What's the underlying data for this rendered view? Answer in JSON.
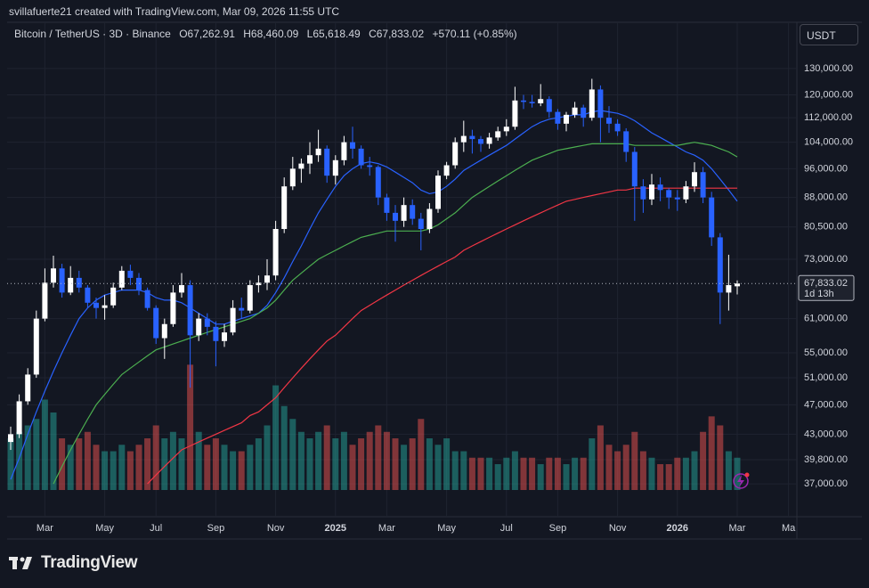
{
  "credit": "svillafuerte21 created with TradingView.com, Mar 09, 2026 11:55 UTC",
  "brand": "TradingView",
  "chart_data": {
    "type": "candlestick",
    "title": "Bitcoin / TetherUS · 3D · Binance",
    "header": {
      "open": "O67,262.91",
      "high": "H68,460.09",
      "low": "L65,618.49",
      "close": "C67,833.02",
      "change": "+570.11 (+0.85%)"
    },
    "currency": "USDT",
    "categories": [
      null,
      null,
      null,
      null,
      "Mar",
      null,
      null,
      null,
      null,
      null,
      null,
      "May",
      null,
      null,
      null,
      null,
      null,
      "Jul",
      null,
      null,
      null,
      null,
      null,
      null,
      "Sep",
      null,
      null,
      null,
      null,
      null,
      null,
      "Nov",
      null,
      null,
      null,
      null,
      null,
      null,
      "2025",
      null,
      null,
      null,
      null,
      null,
      "Mar",
      null,
      null,
      null,
      null,
      null,
      null,
      "May",
      null,
      null,
      null,
      null,
      null,
      null,
      "Jul",
      null,
      null,
      null,
      null,
      null,
      "Sep",
      null,
      null,
      null,
      null,
      null,
      null,
      "Nov",
      null,
      null,
      null,
      null,
      null,
      null,
      "2026",
      null,
      null,
      null,
      null,
      null,
      null,
      "Mar",
      null,
      null,
      null,
      null,
      null,
      "Ma"
    ],
    "open": [
      42000,
      43000,
      47500,
      51500,
      61000,
      68000,
      71000,
      66000,
      69000,
      67000,
      64000,
      63000,
      63500,
      67000,
      70500,
      69000,
      66500,
      63000,
      57500,
      60000,
      66000,
      67500,
      58000,
      61000,
      59500,
      57000,
      58500,
      63000,
      62500,
      67500,
      68000,
      69500,
      80000,
      91000,
      96000,
      97500,
      100000,
      102000,
      94000,
      98500,
      104000,
      102000,
      97000,
      96500,
      88000,
      84000,
      82000,
      86000,
      82500,
      80000,
      85000,
      94000,
      97000,
      104000,
      106000,
      105000,
      103500,
      105500,
      107500,
      109000,
      118000,
      117500,
      117000,
      118500,
      114000,
      110000,
      113000,
      115500,
      112000,
      122000,
      112000,
      110000,
      107500,
      101000,
      91000,
      87500,
      91500,
      90000,
      88000,
      87500,
      91000,
      95000,
      88000,
      78000,
      66000,
      67262.91,
      null,
      null,
      null,
      null,
      null,
      null
    ],
    "high": [
      44000,
      48500,
      52500,
      62500,
      71000,
      73800,
      72000,
      71500,
      70500,
      67500,
      65000,
      65500,
      68000,
      71500,
      71800,
      70000,
      67000,
      63500,
      61000,
      67500,
      70000,
      68500,
      62000,
      62000,
      60500,
      60000,
      64500,
      65000,
      68500,
      69500,
      73000,
      82000,
      93500,
      99500,
      99000,
      104000,
      108000,
      103000,
      100000,
      106000,
      109000,
      103000,
      99500,
      97000,
      89000,
      86000,
      88000,
      87500,
      84000,
      86500,
      95500,
      98000,
      105500,
      111000,
      108000,
      106000,
      107000,
      109000,
      111500,
      123000,
      120000,
      120000,
      124000,
      119500,
      115000,
      114000,
      117500,
      116500,
      126000,
      123500,
      116000,
      111500,
      108500,
      102500,
      93000,
      94500,
      93500,
      90500,
      90000,
      92500,
      97900,
      96500,
      89500,
      79000,
      74000,
      68460.09,
      null,
      null,
      null,
      null,
      null,
      null
    ],
    "low": [
      41000,
      42500,
      47000,
      51000,
      60500,
      67000,
      65000,
      65500,
      66000,
      63000,
      61000,
      60800,
      63000,
      66500,
      67500,
      65500,
      62500,
      56500,
      54000,
      59500,
      65000,
      49500,
      57000,
      58000,
      52800,
      56000,
      58000,
      61000,
      62000,
      66000,
      66500,
      68500,
      79000,
      90000,
      92000,
      94500,
      98000,
      92000,
      91500,
      97000,
      99000,
      96000,
      94000,
      86000,
      82000,
      77000,
      80500,
      81000,
      75000,
      79000,
      84000,
      93000,
      96000,
      101000,
      100500,
      101000,
      102000,
      104500,
      106000,
      108000,
      115000,
      115500,
      116000,
      112000,
      108000,
      107500,
      112000,
      109000,
      111000,
      104000,
      107000,
      106000,
      98000,
      82000,
      84000,
      86000,
      87000,
      85000,
      84500,
      86500,
      89500,
      86500,
      76000,
      60000,
      62500,
      65618.49,
      null,
      null,
      null,
      null,
      null,
      null
    ],
    "close": [
      43000,
      47500,
      51500,
      61000,
      68000,
      71000,
      66000,
      69000,
      67000,
      64000,
      63000,
      63500,
      67000,
      70500,
      69000,
      66500,
      63000,
      57500,
      60000,
      66000,
      67500,
      58000,
      61000,
      59500,
      57000,
      58500,
      63000,
      62500,
      67500,
      68000,
      69500,
      80000,
      91000,
      96000,
      97500,
      100000,
      102000,
      94000,
      98500,
      104000,
      102000,
      97000,
      96500,
      88000,
      84000,
      82000,
      86000,
      82500,
      80000,
      85000,
      94000,
      97000,
      104000,
      106000,
      105000,
      103500,
      105500,
      107500,
      109000,
      118000,
      117500,
      117000,
      118500,
      114000,
      110000,
      113000,
      115500,
      112000,
      122000,
      112000,
      110000,
      107500,
      101000,
      91000,
      87500,
      91500,
      90000,
      88000,
      87500,
      91000,
      95000,
      88000,
      78000,
      66000,
      67500,
      67833.02,
      null,
      null,
      null,
      null,
      null,
      null
    ],
    "up_color": "#ffffff",
    "down_color": "#2962ff",
    "volume": {
      "lim": [
        0,
        100
      ],
      "up_color": "#26a69a",
      "down_color": "#ef5350",
      "values": [
        40,
        45,
        50,
        55,
        70,
        60,
        40,
        35,
        40,
        45,
        35,
        30,
        30,
        35,
        30,
        35,
        40,
        50,
        40,
        45,
        40,
        97,
        45,
        35,
        40,
        35,
        30,
        30,
        35,
        40,
        50,
        81,
        65,
        55,
        45,
        40,
        45,
        50,
        40,
        45,
        35,
        40,
        45,
        50,
        45,
        40,
        35,
        40,
        55,
        40,
        35,
        40,
        30,
        30,
        25,
        25,
        25,
        20,
        25,
        30,
        25,
        25,
        20,
        25,
        25,
        20,
        25,
        25,
        40,
        50,
        35,
        30,
        35,
        45,
        30,
        25,
        20,
        20,
        25,
        25,
        30,
        45,
        57,
        50,
        30,
        25,
        null,
        null,
        null,
        null,
        null,
        null
      ]
    },
    "lines": [
      {
        "color": "#2962ff",
        "values": [
          37500,
          40000,
          43000,
          46000,
          49000,
          52000,
          55000,
          58000,
          61000,
          63000,
          64500,
          65500,
          66000,
          66500,
          66500,
          66500,
          66000,
          65000,
          64500,
          64500,
          64000,
          63000,
          62000,
          61000,
          60000,
          60000,
          60500,
          61000,
          61500,
          62000,
          63500,
          66000,
          69000,
          72500,
          76000,
          80000,
          84000,
          87500,
          91000,
          94000,
          96000,
          97500,
          98000,
          97500,
          96500,
          95000,
          93500,
          92000,
          90000,
          89000,
          89500,
          91000,
          93000,
          95500,
          97000,
          98500,
          100000,
          101500,
          103000,
          105000,
          107000,
          109000,
          110500,
          111500,
          112000,
          112500,
          113000,
          113000,
          114000,
          114500,
          114000,
          113500,
          112500,
          111000,
          109000,
          107000,
          105500,
          104000,
          102500,
          101000,
          100000,
          98500,
          96000,
          93000,
          90000,
          87000,
          null,
          null,
          null,
          null,
          null,
          null
        ]
      },
      {
        "color": "#4caf50",
        "values": [
          null,
          null,
          null,
          null,
          null,
          37000,
          39000,
          41000,
          43000,
          45000,
          47000,
          48500,
          50000,
          51500,
          52500,
          53500,
          54500,
          55500,
          56000,
          56500,
          57000,
          57500,
          58000,
          58500,
          59000,
          59500,
          60000,
          60500,
          61000,
          62000,
          63000,
          64500,
          66500,
          68500,
          70000,
          71500,
          73000,
          74000,
          75000,
          76000,
          77000,
          78000,
          78500,
          79000,
          79500,
          79500,
          79500,
          79500,
          79500,
          80000,
          81000,
          82500,
          84000,
          86000,
          88000,
          89500,
          91000,
          92500,
          94000,
          95500,
          97000,
          98500,
          99500,
          100500,
          101500,
          102000,
          102500,
          103000,
          103500,
          103500,
          103500,
          103500,
          103500,
          103000,
          103000,
          103000,
          103000,
          103000,
          103000,
          103500,
          104000,
          103500,
          103000,
          102000,
          101000,
          99500,
          null,
          null,
          null,
          null,
          null,
          null
        ]
      },
      {
        "color": "#f23645",
        "values": [
          null,
          null,
          null,
          null,
          null,
          null,
          null,
          null,
          null,
          null,
          null,
          null,
          null,
          null,
          null,
          null,
          37000,
          38000,
          39000,
          40000,
          41000,
          41500,
          42000,
          42500,
          43000,
          43500,
          44000,
          44500,
          45500,
          46000,
          47000,
          48000,
          49500,
          51000,
          52500,
          54000,
          55500,
          57000,
          58000,
          59500,
          61000,
          62500,
          63500,
          64500,
          65500,
          66500,
          67500,
          68500,
          69500,
          70500,
          71500,
          72500,
          73500,
          75000,
          76000,
          77000,
          78000,
          79000,
          80000,
          81000,
          82000,
          83000,
          84000,
          85000,
          86000,
          87000,
          87500,
          88000,
          88500,
          89000,
          89500,
          90000,
          90000,
          90500,
          90500,
          90500,
          90500,
          90500,
          90500,
          90500,
          90500,
          90500,
          90500,
          90500,
          90500,
          90500,
          null,
          null,
          null,
          null,
          null,
          null
        ]
      }
    ],
    "log_scale": true,
    "grid": true,
    "ylim": [
      33500,
      149500
    ],
    "yticks": [
      {
        "value": 37000,
        "label": "37,000.00"
      },
      {
        "value": 39800,
        "label": "39,800.00"
      },
      {
        "value": 43000,
        "label": "43,000.00"
      },
      {
        "value": 47000,
        "label": "47,000.00"
      },
      {
        "value": 51000,
        "label": "51,000.00"
      },
      {
        "value": 55000,
        "label": "55,000.00"
      },
      {
        "value": 61000,
        "label": "61,000.00"
      },
      {
        "value": 73000,
        "label": "73,000.00"
      },
      {
        "value": 80500,
        "label": "80,500.00"
      },
      {
        "value": 88000,
        "label": "88,000.00"
      },
      {
        "value": 96000,
        "label": "96,000.00"
      },
      {
        "value": 104000,
        "label": "104,000.00"
      },
      {
        "value": 112000,
        "label": "112,000.00"
      },
      {
        "value": 120000,
        "label": "120,000.00"
      },
      {
        "value": 130000,
        "label": "130,000.00"
      }
    ],
    "last_price": {
      "value": 67833.02,
      "label": "67,833.02"
    },
    "countdown": "1d 13h"
  }
}
